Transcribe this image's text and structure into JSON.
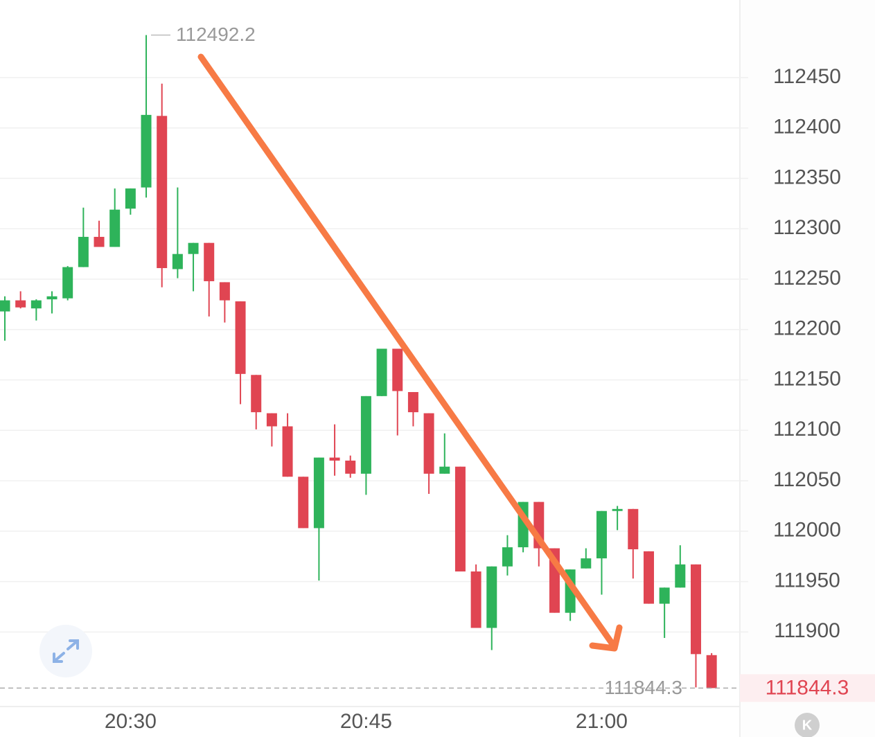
{
  "chart_data": {
    "type": "candlestick",
    "x": [
      "20:22",
      "20:23",
      "20:24",
      "20:25",
      "20:26",
      "20:27",
      "20:28",
      "20:29",
      "20:30",
      "20:31",
      "20:32",
      "20:33",
      "20:34",
      "20:35",
      "20:36",
      "20:37",
      "20:38",
      "20:39",
      "20:40",
      "20:41",
      "20:42",
      "20:43",
      "20:44",
      "20:45",
      "20:46",
      "20:47",
      "20:48",
      "20:49",
      "20:50",
      "20:51",
      "20:52",
      "20:53",
      "20:54",
      "20:55",
      "20:56",
      "20:57",
      "20:58",
      "20:59",
      "21:00",
      "21:01",
      "21:02",
      "21:03",
      "21:04",
      "21:05",
      "21:06",
      "21:07"
    ],
    "open": [
      112218,
      112229,
      112221,
      112230,
      112231,
      112262,
      112292,
      112282,
      112320,
      112341,
      112412,
      112260,
      112275,
      112286,
      112247,
      112228,
      112155,
      112117,
      112104,
      112054,
      112003,
      112073,
      112070,
      112057,
      112134,
      112181,
      112138,
      112117,
      112057,
      112064,
      111960,
      111904,
      111965,
      111984,
      112029,
      111983,
      111919,
      111963,
      111973,
      112020,
      112022,
      111980,
      111928,
      111944,
      111967,
      111877
    ],
    "high": [
      112233,
      112238,
      112230,
      112238,
      112263,
      112321,
      112308,
      112340,
      112340,
      112492.2,
      112444,
      112341,
      112286,
      112286,
      112247,
      112228,
      112155,
      112117,
      112117,
      112054,
      112073,
      112106,
      112075,
      112134,
      112181,
      112181,
      112138,
      112117,
      112097,
      112064,
      111967,
      111965,
      111996,
      112029,
      112029,
      111983,
      111962,
      111983,
      112020,
      112025,
      112022,
      111980,
      111944,
      111986,
      111967,
      111879
    ],
    "low": [
      112189,
      112221,
      112209,
      112216,
      112229,
      112262,
      112282,
      112282,
      112314,
      112331,
      112242,
      112251,
      112238,
      112213,
      112207,
      112126,
      112101,
      112084,
      112054,
      112003,
      111951,
      112055,
      112053,
      112036,
      112134,
      112095,
      112104,
      112037,
      112057,
      111960,
      111904,
      111882,
      111956,
      111979,
      111965,
      111919,
      111911,
      111963,
      111937,
      112001,
      111953,
      111928,
      111894,
      111944,
      111845,
      111844.3
    ],
    "close": [
      112229,
      112222,
      112229,
      112233,
      112262,
      112292,
      112282,
      112319,
      112340,
      112413,
      112261,
      112275,
      112286,
      112248,
      112229,
      112156,
      112118,
      112104,
      112054,
      112003,
      112073,
      112070,
      112057,
      112134,
      112181,
      112139,
      112118,
      112057,
      112064,
      111960,
      111904,
      111965,
      111984,
      112029,
      111983,
      111919,
      111962,
      111973,
      112020,
      112022,
      111982,
      111928,
      111944,
      111967,
      111878,
      111844.3
    ],
    "up_color": "#2eb35a",
    "down_color": "#e04552",
    "ylim": [
      111826,
      112527
    ],
    "yticks": [
      111900,
      111950,
      112000,
      112050,
      112100,
      112150,
      112200,
      112250,
      112300,
      112350,
      112400,
      112450
    ],
    "xticks": [
      "20:30",
      "20:45",
      "21:00"
    ],
    "grid": true,
    "high_annotation": 112492.2,
    "last_price": 111844.3,
    "icon_label": "K"
  }
}
